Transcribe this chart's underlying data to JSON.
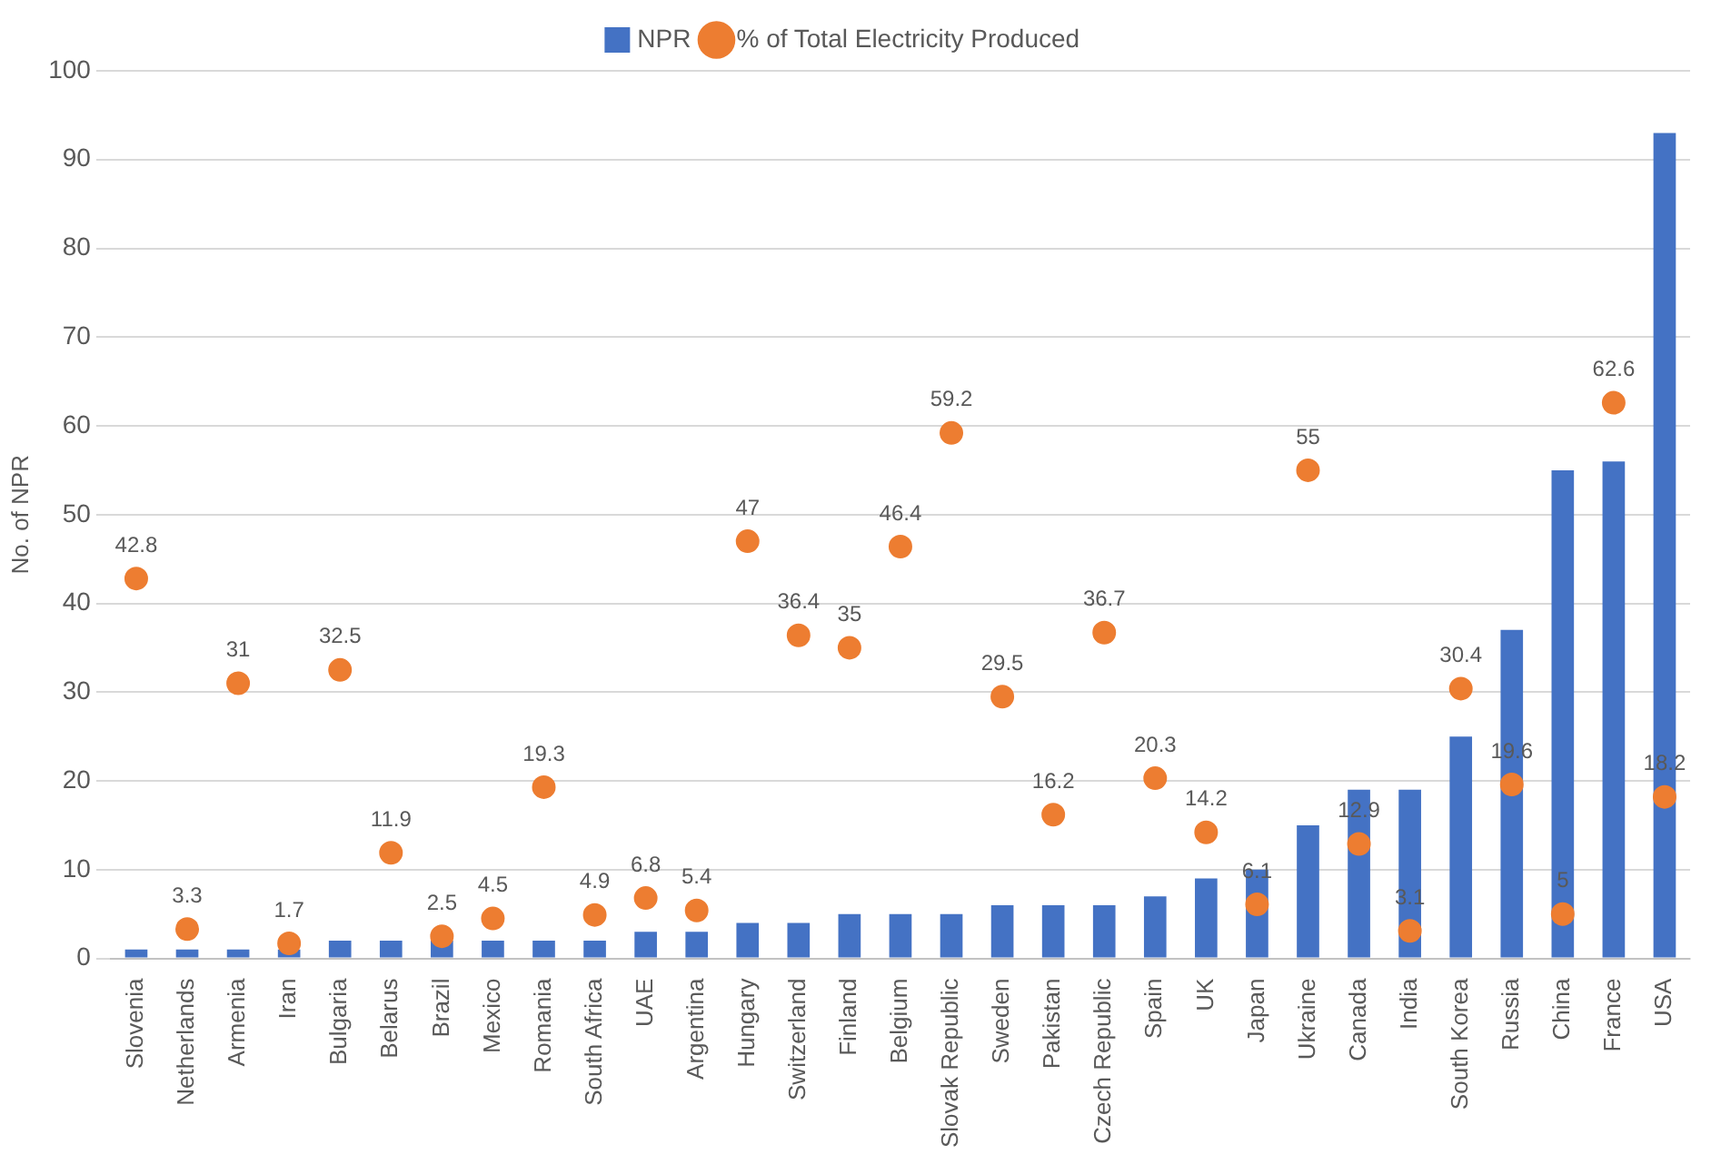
{
  "chart_data": {
    "type": "bar",
    "ylabel": "No. of NPR",
    "categories": [
      "Slovenia",
      "Netherlands",
      "Armenia",
      "Iran",
      "Bulgaria",
      "Belarus",
      "Brazil",
      "Mexico",
      "Romania",
      "South Africa",
      "UAE",
      "Argentina",
      "Hungary",
      "Switzerland",
      "Finland",
      "Belgium",
      "Slovak Republic",
      "Sweden",
      "Pakistan",
      "Czech Republic",
      "Spain",
      "UK",
      "Japan",
      "Ukraine",
      "Canada",
      "India",
      "South Korea",
      "Russia",
      "China",
      "France",
      "USA"
    ],
    "series": [
      {
        "name": "NPR",
        "color": "#4472c4",
        "values": [
          1,
          1,
          1,
          1,
          2,
          2,
          2,
          2,
          2,
          2,
          3,
          3,
          4,
          4,
          5,
          5,
          5,
          6,
          6,
          6,
          7,
          9,
          10,
          15,
          19,
          19,
          25,
          37,
          55,
          56,
          93
        ]
      },
      {
        "name": "% of Total Electricity Produced",
        "type": "scatter",
        "color": "#ed7d31",
        "marker": "circle",
        "values": [
          42.8,
          3.3,
          31,
          1.7,
          32.5,
          11.9,
          2.5,
          4.5,
          19.3,
          4.9,
          6.8,
          5.4,
          47,
          36.4,
          35,
          46.4,
          59.2,
          29.5,
          16.2,
          36.7,
          20.3,
          14.2,
          6.1,
          55,
          12.9,
          3.1,
          30.4,
          19.6,
          5,
          62.6,
          18.2
        ],
        "value_labels": [
          "42.8",
          "3.3",
          "31",
          "1.7",
          "32.5",
          "11.9",
          "2.5",
          "4.5",
          "19.3",
          "4.9",
          "6.8",
          "5.4",
          "47",
          "36.4",
          "35",
          "46.4",
          "59.2",
          "29.5",
          "16.2",
          "36.7",
          "20.3",
          "14.2",
          "6.1",
          "55",
          "12.9",
          "3.1",
          "30.4",
          "19.6",
          "5",
          "62.6",
          "18.2"
        ]
      }
    ],
    "ylim": [
      0,
      100
    ],
    "yticks": [
      0,
      10,
      20,
      30,
      40,
      50,
      60,
      70,
      80,
      90,
      100
    ],
    "grid": "y",
    "legend": "top"
  }
}
